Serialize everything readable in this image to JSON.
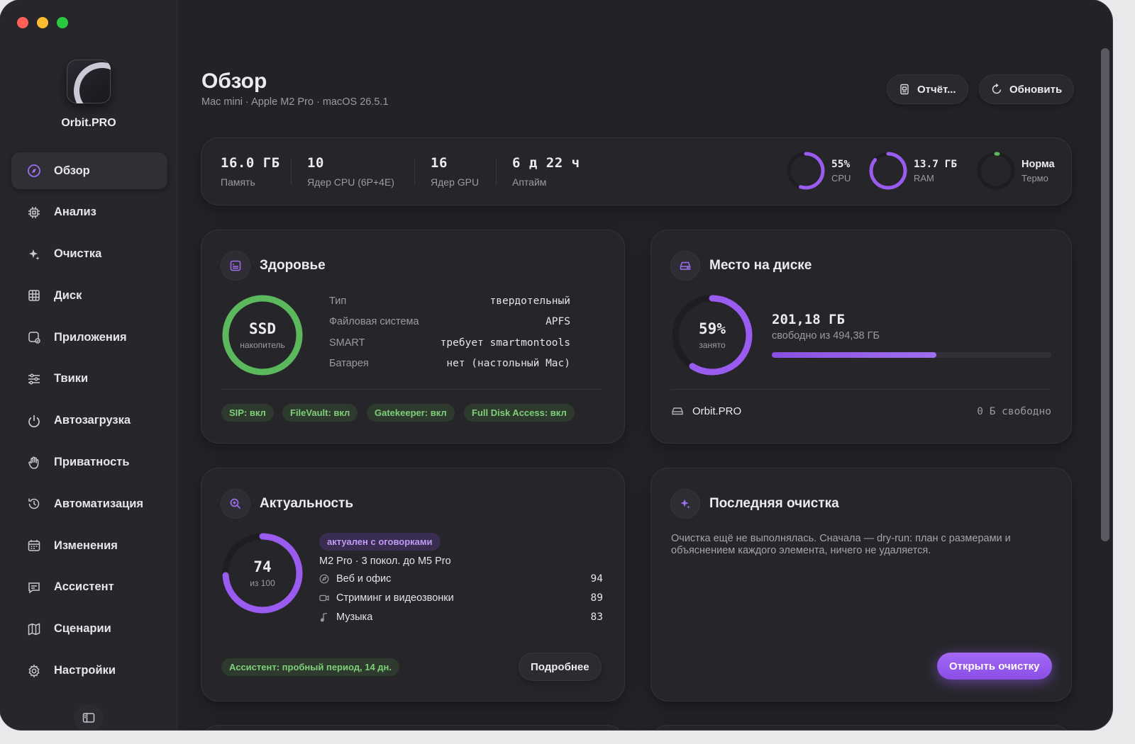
{
  "app": {
    "name": "Orbit.PRO"
  },
  "sidebar": {
    "items": [
      {
        "label": "Обзор",
        "icon": "compass-icon",
        "active": true
      },
      {
        "label": "Анализ",
        "icon": "cpu-chip-icon"
      },
      {
        "label": "Очистка",
        "icon": "sparkles-icon"
      },
      {
        "label": "Диск",
        "icon": "grid-disk-icon"
      },
      {
        "label": "Приложения",
        "icon": "apps-icon"
      },
      {
        "label": "Твики",
        "icon": "sliders-icon"
      },
      {
        "label": "Автозагрузка",
        "icon": "power-icon"
      },
      {
        "label": "Приватность",
        "icon": "hand-icon"
      },
      {
        "label": "Автоматизация",
        "icon": "history-icon"
      },
      {
        "label": "Изменения",
        "icon": "calendar-icon"
      },
      {
        "label": "Ассистент",
        "icon": "chat-icon"
      },
      {
        "label": "Сценарии",
        "icon": "map-icon"
      },
      {
        "label": "Настройки",
        "icon": "gear-icon"
      }
    ]
  },
  "header": {
    "title": "Обзор",
    "subtitle": "Mac mini · Apple M2 Pro · macOS 26.5.1",
    "report_label": "Отчёт...",
    "refresh_label": "Обновить"
  },
  "stats": {
    "memory": {
      "value": "16.0 ГБ",
      "label": "Память"
    },
    "cpu_cores": {
      "value": "10",
      "label": "Ядер CPU (6P+4E)"
    },
    "gpu_cores": {
      "value": "16",
      "label": "Ядер GPU"
    },
    "uptime": {
      "value": "6 д 22 ч",
      "label": "Аптайм"
    },
    "gauges": {
      "cpu": {
        "value": "55%",
        "label": "CPU",
        "fraction": 0.55
      },
      "ram": {
        "value": "13.7 ГБ",
        "label": "RAM",
        "fraction": 0.86
      },
      "thermo": {
        "value": "Норма",
        "label": "Термо",
        "fraction": 0.02
      }
    }
  },
  "health": {
    "title": "Здоровье",
    "ring": {
      "main": "SSD",
      "sub": "накопитель",
      "fraction": 1.0
    },
    "rows": [
      {
        "key": "Тип",
        "value": "твердотельный"
      },
      {
        "key": "Файловая система",
        "value": "APFS"
      },
      {
        "key": "SMART",
        "value": "требует smartmontools"
      },
      {
        "key": "Батарея",
        "value": "нет (настольный Mac)"
      }
    ],
    "chips": [
      "SIP: вкл",
      "FileVault: вкл",
      "Gatekeeper: вкл",
      "Full Disk Access: вкл"
    ]
  },
  "disk": {
    "title": "Место на диске",
    "ring": {
      "main": "59%",
      "sub": "занято",
      "fraction": 0.59
    },
    "free": "201,18 ГБ",
    "free_of": "свободно из 494,38 ГБ",
    "bar_fraction": 0.59,
    "volume": {
      "name": "Orbit.PRO",
      "free": "0 Б свободно"
    }
  },
  "relevance": {
    "title": "Актуальность",
    "ring": {
      "main": "74",
      "sub": "из 100",
      "fraction": 0.74
    },
    "badge": "актуален с оговорками",
    "model": "M2 Pro · 3 покол. до M5 Pro",
    "scores": [
      {
        "label": "Веб и офис",
        "value": "94",
        "icon": "compass-small-icon"
      },
      {
        "label": "Стриминг и видеозвонки",
        "value": "89",
        "icon": "video-icon"
      },
      {
        "label": "Музыка",
        "value": "83",
        "icon": "music-note-icon"
      }
    ],
    "trial_chip": "Ассистент: пробный период, 14 дн.",
    "details_label": "Подробнее"
  },
  "last_cleanup": {
    "title": "Последняя очистка",
    "text": "Очистка ещё не выполнялась. Сначала — dry-run: план с размерами и объяснением каждого элемента, ничего не удаляется.",
    "open_label": "Открыть очистку"
  },
  "colors": {
    "accent": "#9a5cf0",
    "green": "#5cb85c",
    "chip_green": "#7fcf7a"
  }
}
